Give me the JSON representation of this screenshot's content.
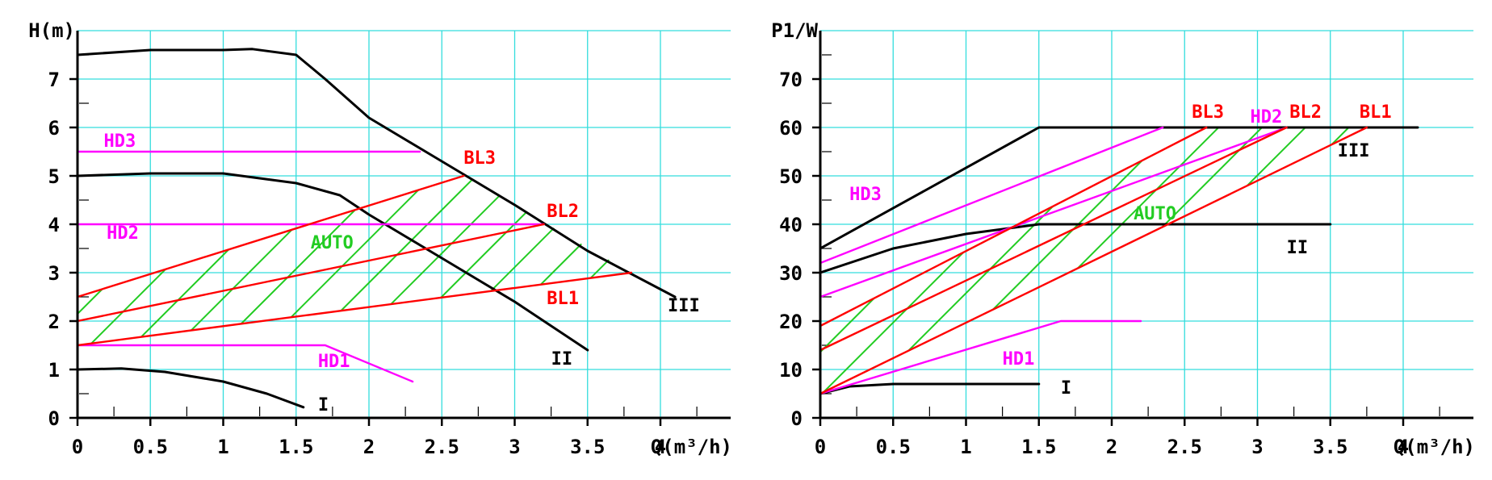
{
  "chart_data": [
    {
      "type": "line",
      "ylabel": "H(m)",
      "xlabel": "Q(m³/h)",
      "xlim": [
        0,
        4.5
      ],
      "ylim": [
        0,
        8
      ],
      "x_ticks": [
        "0",
        "0.5",
        "1",
        "1.5",
        "2",
        "2.5",
        "3",
        "3.5",
        "4"
      ],
      "y_ticks": [
        "0",
        "1",
        "2",
        "3",
        "4",
        "5",
        "6",
        "7"
      ],
      "grid": true,
      "series": [
        {
          "name": "III",
          "color": "#000000",
          "x": [
            0,
            0.5,
            1.0,
            1.2,
            1.5,
            1.7,
            2.0,
            2.5,
            3.0,
            3.5,
            4.1
          ],
          "y": [
            7.5,
            7.6,
            7.6,
            7.62,
            7.5,
            7.0,
            6.2,
            5.3,
            4.4,
            3.45,
            2.5
          ]
        },
        {
          "name": "II",
          "color": "#000000",
          "x": [
            0,
            0.5,
            1.0,
            1.5,
            1.8,
            2.0,
            2.5,
            3.0,
            3.5
          ],
          "y": [
            5.0,
            5.05,
            5.05,
            4.85,
            4.6,
            4.2,
            3.3,
            2.4,
            1.4
          ]
        },
        {
          "name": "I",
          "color": "#000000",
          "x": [
            0,
            0.3,
            0.6,
            1.0,
            1.3,
            1.55
          ],
          "y": [
            1.0,
            1.02,
            0.95,
            0.75,
            0.5,
            0.22
          ]
        },
        {
          "name": "HD3",
          "color": "#ff00ff",
          "x": [
            0,
            2.35
          ],
          "y": [
            5.5,
            5.5
          ]
        },
        {
          "name": "HD2",
          "color": "#ff00ff",
          "x": [
            0,
            3.2
          ],
          "y": [
            4.0,
            4.0
          ]
        },
        {
          "name": "HD1",
          "color": "#ff00ff",
          "x": [
            0,
            1.7,
            2.3
          ],
          "y": [
            1.5,
            1.5,
            0.75
          ]
        },
        {
          "name": "BL3",
          "color": "#ff0000",
          "x": [
            0,
            2.65
          ],
          "y": [
            2.5,
            5.0
          ]
        },
        {
          "name": "BL2",
          "color": "#ff0000",
          "x": [
            0,
            3.2
          ],
          "y": [
            2.0,
            4.0
          ]
        },
        {
          "name": "BL1",
          "color": "#ff0000",
          "x": [
            0,
            3.8
          ],
          "y": [
            1.5,
            3.0
          ]
        }
      ],
      "annotations": [
        {
          "text": "HD3",
          "x": 0.18,
          "y": 5.6,
          "color": "#ff00ff"
        },
        {
          "text": "HD2",
          "x": 0.2,
          "y": 3.7,
          "color": "#ff00ff"
        },
        {
          "text": "HD1",
          "x": 1.65,
          "y": 1.05,
          "color": "#ff00ff"
        },
        {
          "text": "BL3",
          "x": 2.65,
          "y": 5.25,
          "color": "#ff0000"
        },
        {
          "text": "BL2",
          "x": 3.22,
          "y": 4.15,
          "color": "#ff0000"
        },
        {
          "text": "BL1",
          "x": 3.22,
          "y": 2.35,
          "color": "#ff0000"
        },
        {
          "text": "AUTO",
          "x": 1.6,
          "y": 3.5,
          "color": "#22cc22"
        },
        {
          "text": "III",
          "x": 4.05,
          "y": 2.2,
          "color": "#000000"
        },
        {
          "text": "II",
          "x": 3.25,
          "y": 1.1,
          "color": "#000000"
        },
        {
          "text": "I",
          "x": 1.65,
          "y": 0.15,
          "color": "#000000"
        }
      ],
      "auto_region": {
        "color": "#22cc22",
        "x": [
          0,
          2.65,
          3.8,
          1.4,
          0
        ],
        "y": [
          2.5,
          5.0,
          3.0,
          2.05,
          1.5
        ]
      }
    },
    {
      "type": "line",
      "ylabel": "P1/W",
      "xlabel": "Q(m³/h)",
      "xlim": [
        0,
        4.5
      ],
      "ylim": [
        0,
        80
      ],
      "x_ticks": [
        "0",
        "0.5",
        "1",
        "1.5",
        "2",
        "2.5",
        "3",
        "3.5",
        "4"
      ],
      "y_ticks": [
        "0",
        "10",
        "20",
        "30",
        "40",
        "50",
        "60",
        "70"
      ],
      "grid": true,
      "series": [
        {
          "name": "III",
          "color": "#000000",
          "x": [
            0,
            1.5,
            4.1
          ],
          "y": [
            35,
            60,
            60
          ]
        },
        {
          "name": "II",
          "color": "#000000",
          "x": [
            0,
            0.5,
            1.0,
            1.5,
            3.5
          ],
          "y": [
            30,
            35,
            38,
            40,
            40
          ]
        },
        {
          "name": "I",
          "color": "#000000",
          "x": [
            0,
            0.2,
            0.5,
            1.5
          ],
          "y": [
            5,
            6.5,
            7,
            7
          ]
        },
        {
          "name": "HD3",
          "color": "#ff00ff",
          "x": [
            0,
            2.35
          ],
          "y": [
            32,
            60
          ]
        },
        {
          "name": "HD2",
          "color": "#ff00ff",
          "x": [
            0,
            3.2
          ],
          "y": [
            25,
            60
          ]
        },
        {
          "name": "HD1",
          "color": "#ff00ff",
          "x": [
            0,
            1.65,
            2.2
          ],
          "y": [
            5,
            20,
            20
          ]
        },
        {
          "name": "BL3",
          "color": "#ff0000",
          "x": [
            0,
            2.65
          ],
          "y": [
            19,
            60
          ]
        },
        {
          "name": "BL2",
          "color": "#ff0000",
          "x": [
            0,
            3.2
          ],
          "y": [
            14,
            60
          ]
        },
        {
          "name": "BL1",
          "color": "#ff0000",
          "x": [
            0,
            3.75
          ],
          "y": [
            5,
            60
          ]
        }
      ],
      "annotations": [
        {
          "text": "HD3",
          "x": 0.2,
          "y": 45,
          "color": "#ff00ff"
        },
        {
          "text": "HD2",
          "x": 2.95,
          "y": 61,
          "color": "#ff00ff"
        },
        {
          "text": "HD1",
          "x": 1.25,
          "y": 11,
          "color": "#ff00ff"
        },
        {
          "text": "BL3",
          "x": 2.55,
          "y": 62,
          "color": "#ff0000"
        },
        {
          "text": "BL2",
          "x": 3.22,
          "y": 62,
          "color": "#ff0000"
        },
        {
          "text": "BL1",
          "x": 3.7,
          "y": 62,
          "color": "#ff0000"
        },
        {
          "text": "AUTO",
          "x": 2.15,
          "y": 41,
          "color": "#22cc22"
        },
        {
          "text": "III",
          "x": 3.55,
          "y": 54,
          "color": "#000000"
        },
        {
          "text": "II",
          "x": 3.2,
          "y": 34,
          "color": "#000000"
        },
        {
          "text": "I",
          "x": 1.65,
          "y": 5,
          "color": "#000000"
        }
      ],
      "auto_region": {
        "color": "#22cc22",
        "x": [
          0,
          0,
          2.65,
          3.4,
          3.75,
          0
        ],
        "y": [
          5,
          19,
          60,
          60,
          60,
          5
        ]
      }
    }
  ]
}
